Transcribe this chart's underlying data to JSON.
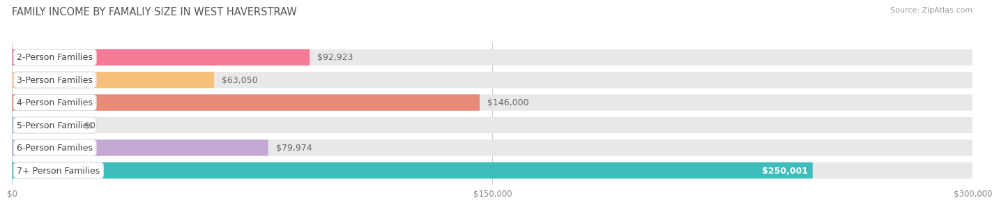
{
  "title": "FAMILY INCOME BY FAMALIY SIZE IN WEST HAVERSTRAW",
  "source": "Source: ZipAtlas.com",
  "categories": [
    "2-Person Families",
    "3-Person Families",
    "4-Person Families",
    "5-Person Families",
    "6-Person Families",
    "7+ Person Families"
  ],
  "values": [
    92923,
    63050,
    146000,
    0,
    79974,
    250001
  ],
  "bar_colors": [
    "#F47A96",
    "#F7C07A",
    "#E88A7A",
    "#A8C0E8",
    "#C4A8D4",
    "#3DBCBC"
  ],
  "bar_bg_color": "#E8E8E8",
  "value_labels": [
    "$92,923",
    "$63,050",
    "$146,000",
    "$0",
    "$79,974",
    "$250,001"
  ],
  "xmax": 300000,
  "xtick_labels": [
    "$0",
    "$150,000",
    "$300,000"
  ],
  "background_color": "#FFFFFF",
  "title_fontsize": 10.5,
  "bar_label_fontsize": 9,
  "value_fontsize": 9,
  "source_fontsize": 8,
  "value_inside_color": "#FFFFFF",
  "value_outside_color": "#666666"
}
